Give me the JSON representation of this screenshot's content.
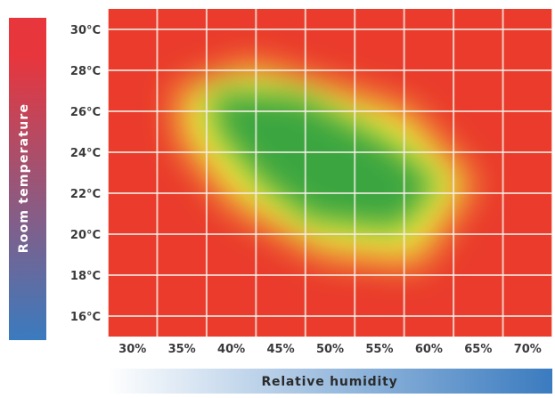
{
  "chart_data": {
    "type": "heatmap",
    "title": "",
    "xlabel": "Relative humidity",
    "ylabel": "Room temperature",
    "x_ticks": [
      "30%",
      "35%",
      "40%",
      "45%",
      "50%",
      "55%",
      "60%",
      "65%",
      "70%"
    ],
    "y_ticks": [
      "30°C",
      "28°C",
      "26°C",
      "24°C",
      "22°C",
      "20°C",
      "18°C",
      "16°C"
    ],
    "x_range": [
      27.5,
      72.5
    ],
    "y_range": [
      15,
      31
    ],
    "grid": true,
    "legend": "none",
    "colorscale": {
      "comfortable": "#3aa63f",
      "borderline": "#f2ea3c",
      "uncomfortable": "#ea3b2c"
    },
    "comfort_zone": {
      "description_units": "relative humidity % vs room temperature °C",
      "comfortable_core": [
        {
          "humidity": 38,
          "temperature": 27
        },
        {
          "humidity": 47,
          "temperature": 26.8
        },
        {
          "humidity": 56,
          "temperature": 24.5
        },
        {
          "humidity": 61,
          "temperature": 22.5
        },
        {
          "humidity": 57,
          "temperature": 20.2
        },
        {
          "humidity": 48,
          "temperature": 20.7
        },
        {
          "humidity": 43,
          "temperature": 22.5
        },
        {
          "humidity": 38.5,
          "temperature": 25
        }
      ],
      "borderline_edge": [
        {
          "humidity": 34.5,
          "temperature": 27
        },
        {
          "humidity": 42,
          "temperature": 28.3
        },
        {
          "humidity": 58,
          "temperature": 26
        },
        {
          "humidity": 64.5,
          "temperature": 22.5
        },
        {
          "humidity": 59,
          "temperature": 18.5
        },
        {
          "humidity": 49,
          "temperature": 19
        },
        {
          "humidity": 40,
          "temperature": 21.5
        },
        {
          "humidity": 35,
          "temperature": 24.5
        }
      ]
    }
  },
  "colors": {
    "temp_bar_top": "#e8363d",
    "temp_bar_bottom": "#3a7bbf",
    "humidity_bar_start": "#ffffff",
    "humidity_bar_end": "#3a7bbf",
    "axis_text": "#3a3a3a",
    "axis_title_dark": "#2b2b2b",
    "axis_title_light": "#ffffff",
    "grid": "#f5eee6"
  }
}
